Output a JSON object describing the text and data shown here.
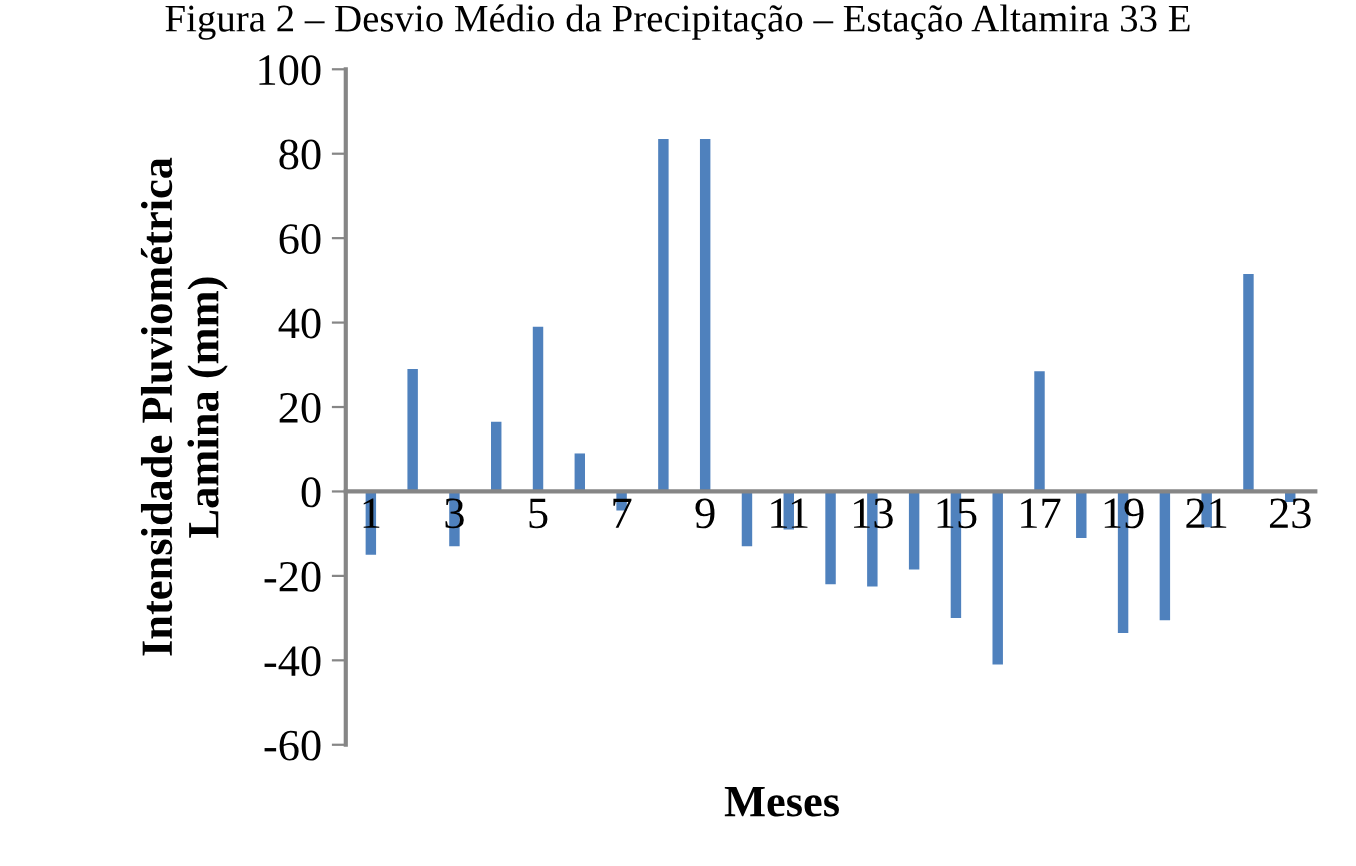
{
  "chart_data": {
    "type": "bar",
    "title": "Figura 2 – Desvio Médio da Precipitação – Estação Altamira 33 E",
    "xlabel": "Meses",
    "ylabel": "Intensidade Pluviométrica\nLamina (mm)",
    "categories": [
      "1",
      null,
      "3",
      null,
      "5",
      null,
      "7",
      null,
      "9",
      null,
      "11",
      null,
      "13",
      null,
      "15",
      null,
      "17",
      null,
      "19",
      null,
      "21",
      null,
      "23"
    ],
    "values": [
      -15,
      29,
      -13,
      16.5,
      39,
      9,
      -4.5,
      83.5,
      83.5,
      -13,
      -9,
      -22,
      -22.5,
      -18.5,
      -30,
      -41,
      28.5,
      -11,
      -33.5,
      -30.5,
      -8.5,
      51.5,
      -2.5
    ],
    "color": "#4f81bd",
    "ylim": [
      -60,
      100
    ],
    "yticks": [
      -60,
      -40,
      -20,
      0,
      20,
      40,
      60,
      80,
      100
    ],
    "grid": false,
    "legend": false
  }
}
